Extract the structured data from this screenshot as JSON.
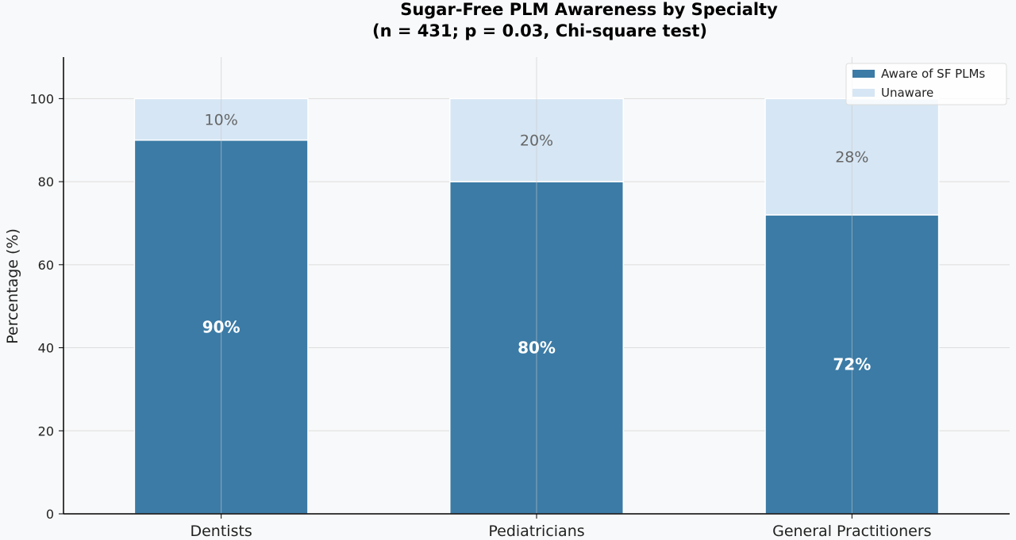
{
  "chart_data": {
    "type": "bar",
    "stacked": true,
    "title": "Sugar-Free PLM Awareness by Specialty",
    "subtitle": "(n = 431; p = 0.03, Chi-square test)",
    "xlabel": "",
    "ylabel": "Percentage (%)",
    "ylim": [
      0,
      110
    ],
    "yticks": [
      0,
      20,
      40,
      60,
      80,
      100
    ],
    "grid": true,
    "legend_position": "top-right",
    "categories": [
      "Dentists",
      "Pediatricians",
      "General Practitioners"
    ],
    "series": [
      {
        "name": "Aware of SF PLMs",
        "values": [
          90,
          80,
          72
        ],
        "labels": [
          "90%",
          "80%",
          "72%"
        ],
        "color": "#3b7ba6"
      },
      {
        "name": "Unaware",
        "values": [
          10,
          20,
          28
        ],
        "labels": [
          "10%",
          "20%",
          "28%"
        ],
        "color": "#d6e6f4"
      }
    ]
  }
}
